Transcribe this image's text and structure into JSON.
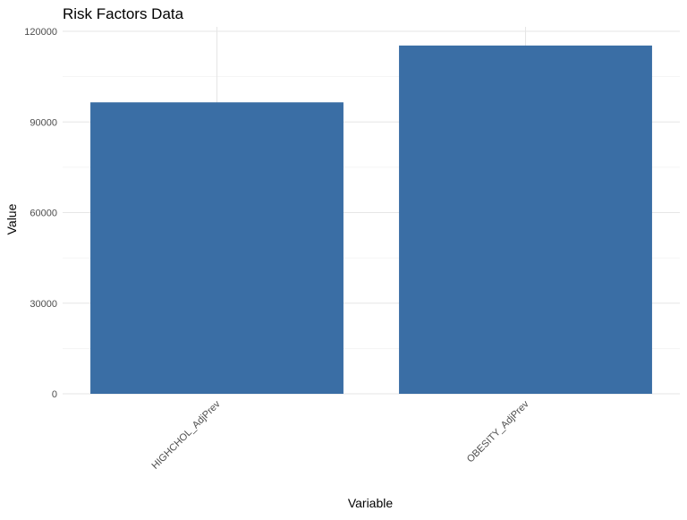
{
  "chart_data": {
    "type": "bar",
    "title": "Risk Factors Data",
    "xlabel": "Variable",
    "ylabel": "Value",
    "categories": [
      "HIGHCHOL_AdjPrev",
      "OBESITY_AdjPrev"
    ],
    "values": [
      96500,
      115300
    ],
    "ylim": [
      0,
      120000
    ],
    "yticks": [
      0,
      30000,
      60000,
      90000,
      120000
    ],
    "bar_color": "#3A6EA5",
    "grid": true,
    "legend": "none"
  },
  "colors": {
    "grid_major": "#E6E6E6",
    "grid_minor": "#F2F2F2",
    "tick_text": "#4D4D4D",
    "title_text": "#000000"
  }
}
